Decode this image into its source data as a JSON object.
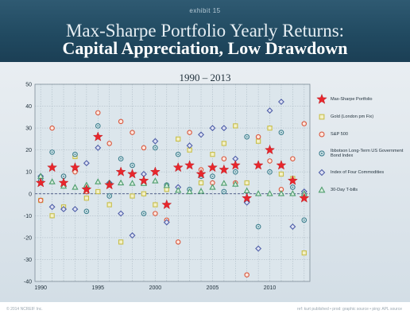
{
  "header": {
    "exhibit": "exhibit 15",
    "title_line1": "Max-Sharpe Portfolio Yearly Returns:",
    "title_line2": "Capital Appreciation, Low Drawdown"
  },
  "footer": {
    "left": "© 2014 NCREIF Inc.",
    "right": "ref: kurt published • prod: graphic source • ping: APL source"
  },
  "colors": {
    "max_sharpe": "#e8262c",
    "gold": "#c8bf4a",
    "sp500": "#d9583e",
    "ibbotson": "#3f7f8e",
    "commodities": "#4f5fa8",
    "tbills": "#4e9d6d",
    "zero_line": "#2b3b6e"
  },
  "chart_data": {
    "type": "scatter",
    "title": "1990 – 2013",
    "x_ticks": [
      "1990",
      "1995",
      "2000",
      "2005",
      "2010"
    ],
    "y_ticks": [
      "50",
      "40",
      "30",
      "20",
      "10",
      "0",
      "-10",
      "-20",
      "-30",
      "-40"
    ],
    "xlim": [
      1989.5,
      2013.5
    ],
    "ylim": [
      -40,
      50
    ],
    "grid": true,
    "legend_position": "right",
    "series": [
      {
        "name": "Max-Sharpe Portfolio",
        "marker": "star",
        "color": "#e8262c",
        "x": [
          1990,
          1991,
          1992,
          1993,
          1994,
          1995,
          1996,
          1997,
          1998,
          1999,
          2000,
          2001,
          2002,
          2003,
          2004,
          2005,
          2006,
          2007,
          2008,
          2009,
          2010,
          2011,
          2012,
          2013
        ],
        "y": [
          5,
          12,
          5,
          12,
          2,
          26,
          4,
          10,
          9,
          6,
          10,
          -5,
          12,
          13,
          9,
          12,
          11,
          13,
          -2,
          13,
          20,
          13,
          6,
          -2
        ]
      },
      {
        "name": "Gold (London pm Fix)",
        "marker": "square",
        "color": "#c8bf4a",
        "x": [
          1990,
          1991,
          1992,
          1993,
          1994,
          1995,
          1996,
          1997,
          1998,
          1999,
          2000,
          2001,
          2002,
          2003,
          2004,
          2005,
          2006,
          2007,
          2008,
          2009,
          2010,
          2011,
          2012,
          2013
        ],
        "y": [
          -3,
          -10,
          -6,
          17,
          -2,
          1,
          -5,
          -22,
          -1,
          0,
          -5,
          2,
          25,
          20,
          5,
          18,
          23,
          31,
          5,
          24,
          30,
          9,
          7,
          -27
        ]
      },
      {
        "name": "S&P 500",
        "marker": "circle",
        "color": "#d9583e",
        "x": [
          1990,
          1991,
          1992,
          1993,
          1994,
          1995,
          1996,
          1997,
          1998,
          1999,
          2000,
          2001,
          2002,
          2003,
          2004,
          2005,
          2006,
          2007,
          2008,
          2009,
          2010,
          2011,
          2012,
          2013
        ],
        "y": [
          -3,
          30,
          8,
          10,
          1,
          37,
          23,
          33,
          28,
          21,
          -9,
          -12,
          -22,
          28,
          11,
          5,
          16,
          5,
          -37,
          26,
          15,
          2,
          16,
          32
        ]
      },
      {
        "name": "Ibbotson Long-Term US Government Bond Index",
        "marker": "circle-dot",
        "color": "#3f7f8e",
        "x": [
          1990,
          1991,
          1992,
          1993,
          1994,
          1995,
          1996,
          1997,
          1998,
          1999,
          2000,
          2001,
          2002,
          2003,
          2004,
          2005,
          2006,
          2007,
          2008,
          2009,
          2010,
          2011,
          2012,
          2013
        ],
        "y": [
          6,
          19,
          8,
          18,
          -8,
          31,
          -1,
          16,
          13,
          -9,
          21,
          4,
          18,
          2,
          8,
          8,
          1,
          10,
          26,
          -15,
          10,
          28,
          3,
          -12
        ]
      },
      {
        "name": "Index of Four Commodities",
        "marker": "diamond",
        "color": "#4f5fa8",
        "x": [
          1990,
          1991,
          1992,
          1993,
          1994,
          1995,
          1996,
          1997,
          1998,
          1999,
          2000,
          2001,
          2002,
          2003,
          2004,
          2005,
          2006,
          2007,
          2008,
          2009,
          2010,
          2011,
          2012,
          2013
        ],
        "y": [
          8,
          -6,
          -7,
          -7,
          14,
          21,
          5,
          -9,
          -19,
          9,
          24,
          -13,
          3,
          22,
          27,
          30,
          30,
          16,
          -4,
          -25,
          38,
          42,
          -15,
          1
        ]
      },
      {
        "name": "30-Day T-bills",
        "marker": "triangle",
        "color": "#4e9d6d",
        "x": [
          1990,
          1991,
          1992,
          1993,
          1994,
          1995,
          1996,
          1997,
          1998,
          1999,
          2000,
          2001,
          2002,
          2003,
          2004,
          2005,
          2006,
          2007,
          2008,
          2009,
          2010,
          2011,
          2012,
          2013
        ],
        "y": [
          8,
          5.5,
          3.5,
          3,
          4,
          5.5,
          5,
          5,
          4.8,
          4.7,
          5.9,
          3.8,
          1.6,
          1,
          1.2,
          3,
          4.8,
          4.4,
          1.4,
          0.1,
          0.1,
          0.1,
          0.1,
          0.1
        ]
      }
    ]
  }
}
